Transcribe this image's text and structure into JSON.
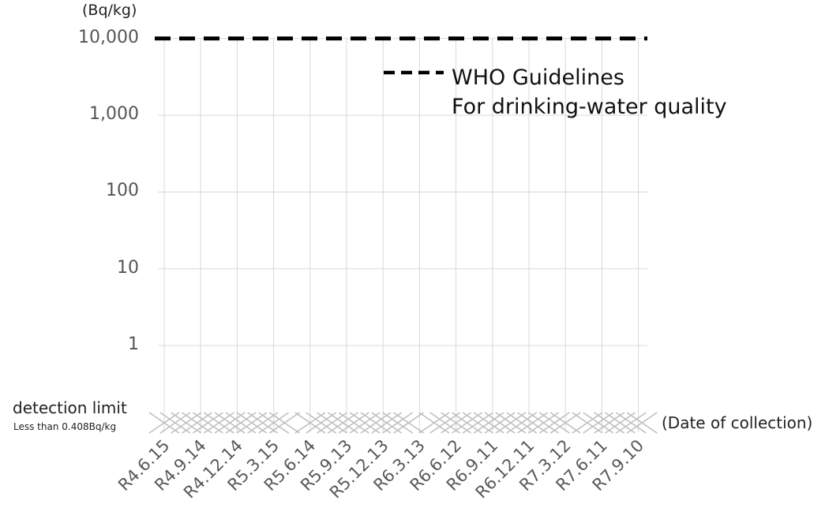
{
  "chart_data": {
    "type": "scatter",
    "ylabel": "(Bq/kg)",
    "xlabel": "(Date of collection)",
    "y_scale": "log",
    "ylim": [
      1,
      10000
    ],
    "y_ticks": [
      "10,000",
      "1,000",
      "100",
      "10",
      "1"
    ],
    "y_tick_values": [
      10000,
      1000,
      100,
      10,
      1
    ],
    "categories": [
      "R4.6.15",
      "R4.9.14",
      "R4.12.14",
      "R5.3.15",
      "R5.6.14",
      "R5.9.13",
      "R5.12.13",
      "R6.3.13",
      "R6.6.12",
      "R6.9.11",
      "R6.12.11",
      "R7.3.12",
      "R7.6.11",
      "R7.9.10"
    ],
    "detection_limit": {
      "label": "detection limit",
      "sublabel": "Less than 0.408Bq/kg"
    },
    "reference_line": {
      "value": 10000,
      "style": "dashed",
      "color": "#000000",
      "legend": [
        "WHO Guidelines",
        "For drinking-water quality"
      ]
    },
    "series": [
      {
        "marker": "x",
        "color": "#bfbfbf",
        "note": "all measurements below detection limit",
        "x": [
          0.0,
          0.3,
          0.6,
          0.9,
          1.2,
          1.5,
          1.8,
          2.1,
          2.4,
          2.7,
          3.0,
          3.3,
          4.0,
          4.3,
          4.6,
          4.9,
          5.2,
          5.5,
          5.8,
          6.1,
          6.4,
          6.7,
          7.4,
          7.7,
          8.0,
          8.3,
          8.6,
          8.9,
          9.2,
          9.5,
          9.8,
          10.1,
          10.4,
          10.7,
          11.0,
          11.6,
          11.9,
          12.2,
          12.5,
          12.8,
          13.1
        ]
      }
    ]
  }
}
